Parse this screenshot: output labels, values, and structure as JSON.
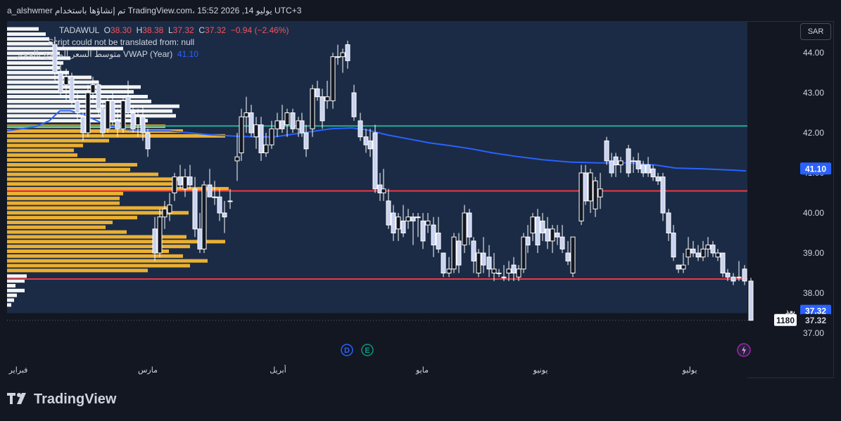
{
  "header": {
    "title": "a_alshwmer تم إنشاؤها باستخدام TradingView.com، يوليو 14, 2026 15:52 UTC+3"
  },
  "legend": {
    "symbol": "TADAWUL",
    "open_label": "O",
    "open": "38.30",
    "high_label": "H",
    "high": "38.38",
    "low_label": "L",
    "low": "37.32",
    "close_label": "C",
    "close": "37.32",
    "change": "−0.94 (−2.46%)",
    "script_error": "Script could not be translated from: null",
    "vwap_label": "متوسط السعر المرجح بالحجم VWAP (Year)",
    "vwap_value": "41.10"
  },
  "currency_button": "SAR",
  "footer": {
    "brand": "TradingView"
  },
  "chart_data": {
    "type": "candlestick",
    "ylim": [
      37.0,
      44.6
    ],
    "y_ticks": [
      "44.00",
      "43.00",
      "42.00",
      "41.00",
      "40.00",
      "39.00",
      "38.00",
      "37.00"
    ],
    "x_ticks": [
      "فبراير",
      "مارس",
      "أبريل",
      "مايو",
      "يونيو",
      "يوليو"
    ],
    "price_labels": {
      "vwap": "41.10",
      "last_tag": "بعد",
      "last": "37.32",
      "volume": "1180",
      "volume_price": "37.32"
    },
    "event_markers": [
      "D",
      "E"
    ],
    "horizontal_levels": [
      {
        "price": 42.17,
        "color": "#22ab94"
      },
      {
        "price": 40.55,
        "color": "#f23645"
      },
      {
        "price": 38.35,
        "color": "#f23645"
      }
    ],
    "colors": {
      "up": "#ffffff",
      "down": "#c8d2f0",
      "vwap": "#2962ff",
      "profile_value_area": "#f7b731",
      "profile_outside": "#ffffff",
      "band": "#1b2b45"
    },
    "vwap_series": [
      [
        0,
        42.05
      ],
      [
        20,
        42.1
      ],
      [
        40,
        42.15
      ],
      [
        60,
        42.3
      ],
      [
        75,
        42.55
      ],
      [
        90,
        42.55
      ],
      [
        110,
        42.45
      ],
      [
        140,
        42.2
      ],
      [
        170,
        42.08
      ],
      [
        200,
        42.05
      ],
      [
        230,
        42.05
      ],
      [
        260,
        42.0
      ],
      [
        290,
        41.95
      ],
      [
        320,
        41.92
      ],
      [
        350,
        41.9
      ],
      [
        380,
        41.9
      ],
      [
        420,
        42.0
      ],
      [
        460,
        42.1
      ],
      [
        490,
        42.12
      ],
      [
        510,
        42.08
      ],
      [
        540,
        41.95
      ],
      [
        570,
        41.85
      ],
      [
        600,
        41.75
      ],
      [
        630,
        41.68
      ],
      [
        660,
        41.6
      ],
      [
        690,
        41.5
      ],
      [
        720,
        41.42
      ],
      [
        760,
        41.33
      ],
      [
        800,
        41.27
      ],
      [
        840,
        41.25
      ],
      [
        880,
        41.25
      ],
      [
        920,
        41.2
      ],
      [
        950,
        41.12
      ],
      [
        990,
        41.1
      ],
      [
        1030,
        41.07
      ],
      [
        1050,
        41.05
      ]
    ],
    "volume_profile": [
      {
        "p": 44.55,
        "w": 45,
        "va": false
      },
      {
        "p": 44.42,
        "w": 55,
        "va": false
      },
      {
        "p": 44.3,
        "w": 60,
        "va": false
      },
      {
        "p": 44.18,
        "w": 65,
        "va": false
      },
      {
        "p": 44.06,
        "w": 165,
        "va": false
      },
      {
        "p": 43.94,
        "w": 75,
        "va": false
      },
      {
        "p": 43.82,
        "w": 90,
        "va": false
      },
      {
        "p": 43.7,
        "w": 80,
        "va": false
      },
      {
        "p": 43.58,
        "w": 75,
        "va": false
      },
      {
        "p": 43.46,
        "w": 88,
        "va": false
      },
      {
        "p": 43.34,
        "w": 120,
        "va": false
      },
      {
        "p": 43.22,
        "w": 130,
        "va": false
      },
      {
        "p": 43.1,
        "w": 190,
        "va": false
      },
      {
        "p": 42.98,
        "w": 180,
        "va": false
      },
      {
        "p": 42.86,
        "w": 200,
        "va": false
      },
      {
        "p": 42.74,
        "w": 205,
        "va": false
      },
      {
        "p": 42.62,
        "w": 245,
        "va": false
      },
      {
        "p": 42.5,
        "w": 235,
        "va": false
      },
      {
        "p": 42.38,
        "w": 240,
        "va": false
      },
      {
        "p": 42.26,
        "w": 200,
        "va": false
      },
      {
        "p": 42.12,
        "w": 225,
        "va": true
      },
      {
        "p": 42.0,
        "w": 250,
        "va": true
      },
      {
        "p": 41.88,
        "w": 310,
        "va": true
      },
      {
        "p": 41.76,
        "w": 145,
        "va": true
      },
      {
        "p": 41.64,
        "w": 108,
        "va": true
      },
      {
        "p": 41.52,
        "w": 95,
        "va": true
      },
      {
        "p": 41.4,
        "w": 100,
        "va": true
      },
      {
        "p": 41.28,
        "w": 140,
        "va": true
      },
      {
        "p": 41.16,
        "w": 185,
        "va": true
      },
      {
        "p": 41.04,
        "w": 175,
        "va": true
      },
      {
        "p": 40.92,
        "w": 215,
        "va": true
      },
      {
        "p": 40.8,
        "w": 255,
        "va": true
      },
      {
        "p": 40.68,
        "w": 235,
        "va": true
      },
      {
        "p": 40.56,
        "w": 315,
        "va": true
      },
      {
        "p": 40.44,
        "w": 165,
        "va": true
      },
      {
        "p": 40.32,
        "w": 160,
        "va": true
      },
      {
        "p": 40.2,
        "w": 160,
        "va": true
      },
      {
        "p": 40.08,
        "w": 230,
        "va": true
      },
      {
        "p": 39.96,
        "w": 258,
        "va": true
      },
      {
        "p": 39.84,
        "w": 185,
        "va": true
      },
      {
        "p": 39.72,
        "w": 150,
        "va": true
      },
      {
        "p": 39.6,
        "w": 140,
        "va": true
      },
      {
        "p": 39.48,
        "w": 170,
        "va": true
      },
      {
        "p": 39.36,
        "w": 255,
        "va": true
      },
      {
        "p": 39.24,
        "w": 310,
        "va": true
      },
      {
        "p": 39.12,
        "w": 260,
        "va": true
      },
      {
        "p": 39.0,
        "w": 230,
        "va": true
      },
      {
        "p": 38.88,
        "w": 250,
        "va": true
      },
      {
        "p": 38.76,
        "w": 285,
        "va": true
      },
      {
        "p": 38.64,
        "w": 260,
        "va": true
      },
      {
        "p": 38.52,
        "w": 200,
        "va": true
      },
      {
        "p": 38.38,
        "w": 28,
        "va": false
      },
      {
        "p": 38.26,
        "w": 25,
        "va": false
      },
      {
        "p": 38.14,
        "w": 12,
        "va": false
      },
      {
        "p": 38.02,
        "w": 25,
        "va": false
      },
      {
        "p": 37.9,
        "w": 14,
        "va": false
      },
      {
        "p": 37.78,
        "w": 10,
        "va": false
      },
      {
        "p": 37.66,
        "w": 6,
        "va": false
      }
    ],
    "candles": [
      [
        68,
        44.2,
        44.4,
        43.3,
        43.5
      ],
      [
        76,
        43.5,
        43.7,
        42.9,
        43.0
      ],
      [
        84,
        43.2,
        43.6,
        42.8,
        43.4
      ],
      [
        92,
        43.4,
        43.5,
        42.7,
        42.8
      ],
      [
        100,
        42.8,
        43.0,
        42.3,
        42.5
      ],
      [
        108,
        42.4,
        42.6,
        41.8,
        42.0
      ],
      [
        115,
        42.0,
        43.2,
        41.9,
        43.0
      ],
      [
        122,
        43.0,
        43.4,
        42.8,
        43.2
      ],
      [
        130,
        43.2,
        43.3,
        42.4,
        42.6
      ],
      [
        136,
        42.6,
        42.8,
        41.9,
        42.0
      ],
      [
        143,
        42.1,
        42.9,
        42.0,
        42.8
      ],
      [
        150,
        42.8,
        43.0,
        42.2,
        42.3
      ],
      [
        157,
        42.3,
        42.6,
        41.9,
        42.1
      ],
      [
        165,
        42.1,
        42.9,
        42.0,
        42.8
      ],
      [
        172,
        42.9,
        43.3,
        42.4,
        42.5
      ],
      [
        179,
        42.5,
        42.7,
        42.0,
        42.1
      ],
      [
        186,
        42.2,
        42.6,
        41.9,
        42.4
      ],
      [
        193,
        42.4,
        42.7,
        41.8,
        42.0
      ],
      [
        200,
        42.0,
        42.1,
        41.4,
        41.6
      ],
      [
        210,
        39.6,
        39.9,
        38.8,
        39.0
      ],
      [
        217,
        39.0,
        40.1,
        38.9,
        39.9
      ],
      [
        224,
        39.9,
        40.3,
        39.6,
        40.1
      ],
      [
        231,
        40.0,
        40.5,
        39.8,
        40.2
      ],
      [
        238,
        40.5,
        41.0,
        40.3,
        40.9
      ],
      [
        246,
        40.9,
        41.2,
        40.6,
        40.7
      ],
      [
        253,
        40.6,
        41.1,
        40.4,
        40.9
      ],
      [
        260,
        40.9,
        41.2,
        40.6,
        40.7
      ],
      [
        267,
        40.6,
        40.9,
        39.4,
        39.6
      ],
      [
        274,
        39.6,
        40.0,
        39.0,
        39.1
      ],
      [
        280,
        39.1,
        40.8,
        39.0,
        40.7
      ],
      [
        288,
        40.7,
        41.1,
        40.4,
        40.4
      ],
      [
        295,
        40.4,
        40.8,
        40.2,
        40.4
      ],
      [
        302,
        40.4,
        40.6,
        39.8,
        40.0
      ],
      [
        309,
        40.0,
        40.3,
        39.5,
        39.9
      ],
      [
        317,
        40.3,
        40.6,
        40.1,
        40.3
      ],
      [
        327,
        41.3,
        42.0,
        40.8,
        41.4
      ],
      [
        333,
        41.5,
        42.6,
        41.3,
        42.4
      ],
      [
        340,
        42.4,
        42.9,
        42.0,
        42.5
      ],
      [
        347,
        42.5,
        42.7,
        41.9,
        42.0
      ],
      [
        354,
        41.9,
        42.4,
        41.6,
        42.2
      ],
      [
        361,
        42.2,
        42.4,
        41.3,
        41.5
      ],
      [
        368,
        41.5,
        42.0,
        41.4,
        41.7
      ],
      [
        376,
        41.7,
        42.3,
        41.6,
        42.1
      ],
      [
        384,
        42.1,
        42.5,
        41.9,
        42.3
      ],
      [
        391,
        42.3,
        42.7,
        42.0,
        42.1
      ],
      [
        398,
        42.2,
        42.6,
        41.9,
        42.5
      ],
      [
        406,
        42.5,
        42.6,
        42.0,
        42.1
      ],
      [
        414,
        42.1,
        42.4,
        41.9,
        42.3
      ],
      [
        419,
        42.3,
        42.5,
        41.9,
        42.0
      ],
      [
        425,
        42.0,
        42.2,
        41.4,
        41.6
      ],
      [
        434,
        42.1,
        43.2,
        41.9,
        43.1
      ],
      [
        441,
        43.1,
        43.3,
        42.8,
        42.9
      ],
      [
        448,
        42.9,
        43.1,
        42.1,
        42.3
      ],
      [
        455,
        42.8,
        43.3,
        42.6,
        42.9
      ],
      [
        463,
        42.8,
        44.0,
        42.6,
        43.9
      ],
      [
        470,
        43.9,
        44.2,
        43.7,
        43.9
      ],
      [
        477,
        43.9,
        44.1,
        43.5,
        44.0
      ],
      [
        484,
        44.2,
        44.3,
        43.6,
        43.8
      ],
      [
        493,
        43.0,
        43.2,
        42.3,
        42.4
      ],
      [
        502,
        42.3,
        42.5,
        41.8,
        41.9
      ],
      [
        510,
        41.9,
        42.1,
        41.5,
        41.7
      ],
      [
        516,
        41.8,
        42.1,
        41.4,
        41.6
      ],
      [
        523,
        42.0,
        42.2,
        40.5,
        40.6
      ],
      [
        530,
        40.7,
        41.0,
        40.3,
        40.5
      ],
      [
        535,
        40.5,
        41.1,
        40.3,
        40.6
      ],
      [
        542,
        40.3,
        40.6,
        39.6,
        39.7
      ],
      [
        549,
        40.0,
        40.2,
        39.3,
        39.5
      ],
      [
        556,
        39.6,
        40.0,
        39.3,
        39.9
      ],
      [
        563,
        39.8,
        40.2,
        39.4,
        39.5
      ],
      [
        570,
        39.8,
        40.1,
        39.6,
        39.9
      ],
      [
        577,
        39.9,
        40.0,
        39.2,
        39.8
      ],
      [
        584,
        39.9,
        40.0,
        39.4,
        39.9
      ],
      [
        591,
        39.8,
        40.0,
        39.1,
        39.3
      ],
      [
        598,
        39.7,
        40.0,
        39.5,
        39.8
      ],
      [
        606,
        39.7,
        39.9,
        38.9,
        39.2
      ],
      [
        613,
        39.5,
        39.9,
        39.0,
        39.1
      ],
      [
        620,
        39.0,
        39.0,
        38.4,
        38.5
      ],
      [
        628,
        38.5,
        38.9,
        38.4,
        38.6
      ],
      [
        635,
        38.6,
        39.5,
        38.5,
        39.4
      ],
      [
        642,
        39.3,
        39.5,
        38.5,
        38.7
      ],
      [
        650,
        39.2,
        40.2,
        39.0,
        40.0
      ],
      [
        657,
        40.0,
        40.1,
        39.2,
        39.4
      ],
      [
        663,
        39.3,
        39.4,
        38.5,
        38.8
      ],
      [
        670,
        38.5,
        39.1,
        38.4,
        39.0
      ],
      [
        677,
        39.0,
        39.4,
        38.5,
        38.7
      ],
      [
        685,
        38.9,
        39.2,
        38.4,
        38.6
      ],
      [
        692,
        38.5,
        39.0,
        38.3,
        38.6
      ],
      [
        699,
        38.5,
        38.6,
        38.4,
        38.5
      ],
      [
        706,
        38.4,
        38.7,
        38.3,
        38.4
      ],
      [
        713,
        38.5,
        38.8,
        38.3,
        38.6
      ],
      [
        720,
        38.7,
        38.9,
        38.3,
        38.5
      ],
      [
        727,
        38.4,
        38.7,
        38.3,
        38.6
      ],
      [
        734,
        38.6,
        39.5,
        38.5,
        39.4
      ],
      [
        740,
        39.4,
        39.7,
        39.0,
        39.2
      ],
      [
        747,
        39.5,
        40.0,
        39.3,
        39.9
      ],
      [
        754,
        39.9,
        40.1,
        39.0,
        39.2
      ],
      [
        761,
        39.8,
        40.0,
        39.3,
        39.5
      ],
      [
        768,
        39.6,
        39.9,
        39.1,
        39.3
      ],
      [
        775,
        39.3,
        39.7,
        39.0,
        39.6
      ],
      [
        782,
        39.5,
        39.7,
        39.2,
        39.4
      ],
      [
        789,
        39.4,
        39.7,
        39.0,
        39.1
      ],
      [
        797,
        39.0,
        39.3,
        38.7,
        38.8
      ],
      [
        804,
        38.5,
        39.4,
        38.4,
        39.4
      ],
      [
        816,
        39.8,
        41.2,
        39.7,
        41.0
      ],
      [
        822,
        41.0,
        41.2,
        40.2,
        40.3
      ],
      [
        829,
        40.3,
        41.1,
        40.0,
        41.0
      ],
      [
        836,
        40.1,
        40.9,
        39.9,
        40.8
      ],
      [
        843,
        40.4,
        41.0,
        40.1,
        40.6
      ],
      [
        852,
        41.8,
        41.9,
        41.2,
        41.3
      ],
      [
        859,
        41.3,
        41.5,
        40.9,
        41.0
      ],
      [
        865,
        41.4,
        41.5,
        40.9,
        41.2
      ],
      [
        872,
        41.2,
        41.4,
        41.0,
        41.3
      ],
      [
        883,
        41.6,
        41.7,
        40.9,
        41.0
      ],
      [
        890,
        41.3,
        41.4,
        41.0,
        41.3
      ],
      [
        897,
        41.3,
        41.5,
        41.0,
        41.1
      ],
      [
        904,
        41.2,
        41.3,
        40.9,
        41.0
      ],
      [
        911,
        41.2,
        41.4,
        40.9,
        41.0
      ],
      [
        918,
        41.1,
        41.2,
        40.8,
        40.9
      ],
      [
        925,
        40.9,
        41.0,
        40.7,
        40.8
      ],
      [
        932,
        40.9,
        41.0,
        39.8,
        40.0
      ],
      [
        940,
        40.0,
        40.1,
        39.3,
        39.5
      ],
      [
        947,
        39.5,
        39.7,
        38.8,
        38.9
      ],
      [
        954,
        38.7,
        38.7,
        38.5,
        38.6
      ],
      [
        961,
        38.6,
        39.0,
        38.5,
        38.7
      ],
      [
        968,
        38.9,
        39.4,
        38.7,
        39.1
      ],
      [
        975,
        39.1,
        39.3,
        38.9,
        39.0
      ],
      [
        982,
        39.0,
        39.2,
        38.8,
        38.9
      ],
      [
        989,
        38.9,
        39.3,
        38.8,
        39.1
      ],
      [
        996,
        39.1,
        39.4,
        38.9,
        39.2
      ],
      [
        1003,
        39.2,
        39.3,
        38.9,
        39.0
      ],
      [
        1010,
        38.9,
        39.1,
        38.8,
        39.0
      ],
      [
        1017,
        39.0,
        39.0,
        38.4,
        38.5
      ],
      [
        1024,
        38.5,
        38.6,
        38.3,
        38.4
      ],
      [
        1032,
        38.4,
        38.5,
        38.2,
        38.3
      ],
      [
        1040,
        38.4,
        38.8,
        38.3,
        38.4
      ],
      [
        1048,
        38.6,
        38.7,
        38.2,
        38.3
      ],
      [
        1057,
        38.3,
        38.38,
        37.32,
        37.32
      ]
    ]
  }
}
